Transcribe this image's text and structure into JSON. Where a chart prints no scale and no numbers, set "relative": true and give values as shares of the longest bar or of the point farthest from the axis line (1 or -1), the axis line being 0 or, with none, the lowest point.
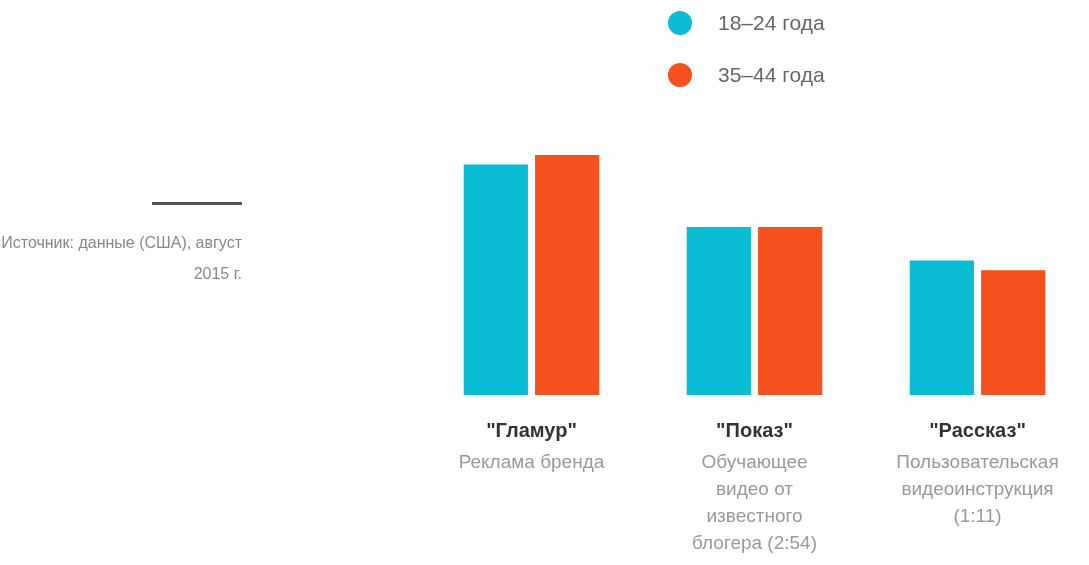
{
  "chart_data": {
    "type": "bar",
    "relative": true,
    "legend": "top",
    "categories": [
      "\"Гламур\"\nРеклама бренда",
      "\"Показ\"\nОбучающее видео от известного блогера (2:54)",
      "\"Рассказ\"\nПользовательская видеоинструкция (1:11)"
    ],
    "series": [
      {
        "name": "18–24 года",
        "color": "#0abcd4",
        "values": [
          0.96,
          0.7,
          0.56
        ]
      },
      {
        "name": "35–44 года",
        "color": "#f4511e",
        "values": [
          1,
          0.7,
          0.52
        ]
      }
    ],
    "annotations": [
      "Источник: данные (США), август 2015 г."
    ]
  }
}
